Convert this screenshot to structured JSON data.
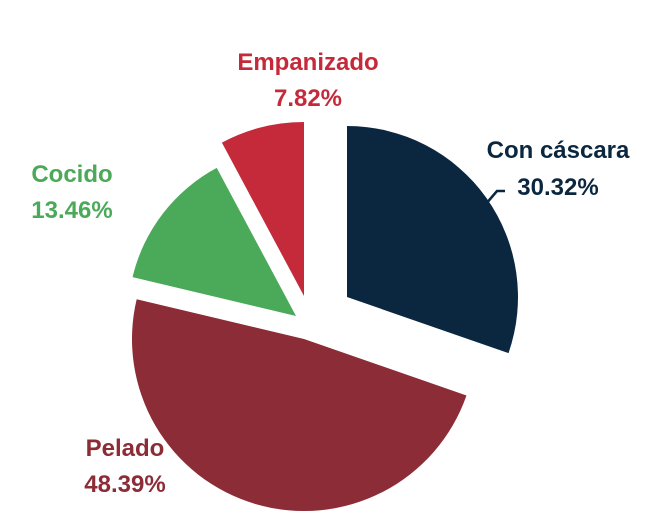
{
  "chart_data": {
    "type": "pie",
    "style": "exploded",
    "slices": [
      {
        "label": "Con cáscara",
        "value_label": "30.32%",
        "value": 30.32,
        "color": "#0b2740"
      },
      {
        "label": "Pelado",
        "value_label": "48.39%",
        "value": 48.39,
        "color": "#8b2c36"
      },
      {
        "label": "Cocido",
        "value_label": "13.46%",
        "value": 13.46,
        "color": "#4ba95a"
      },
      {
        "label": "Empanizado",
        "value_label": "7.82%",
        "value": 7.82,
        "color": "#c42a3a"
      }
    ]
  }
}
